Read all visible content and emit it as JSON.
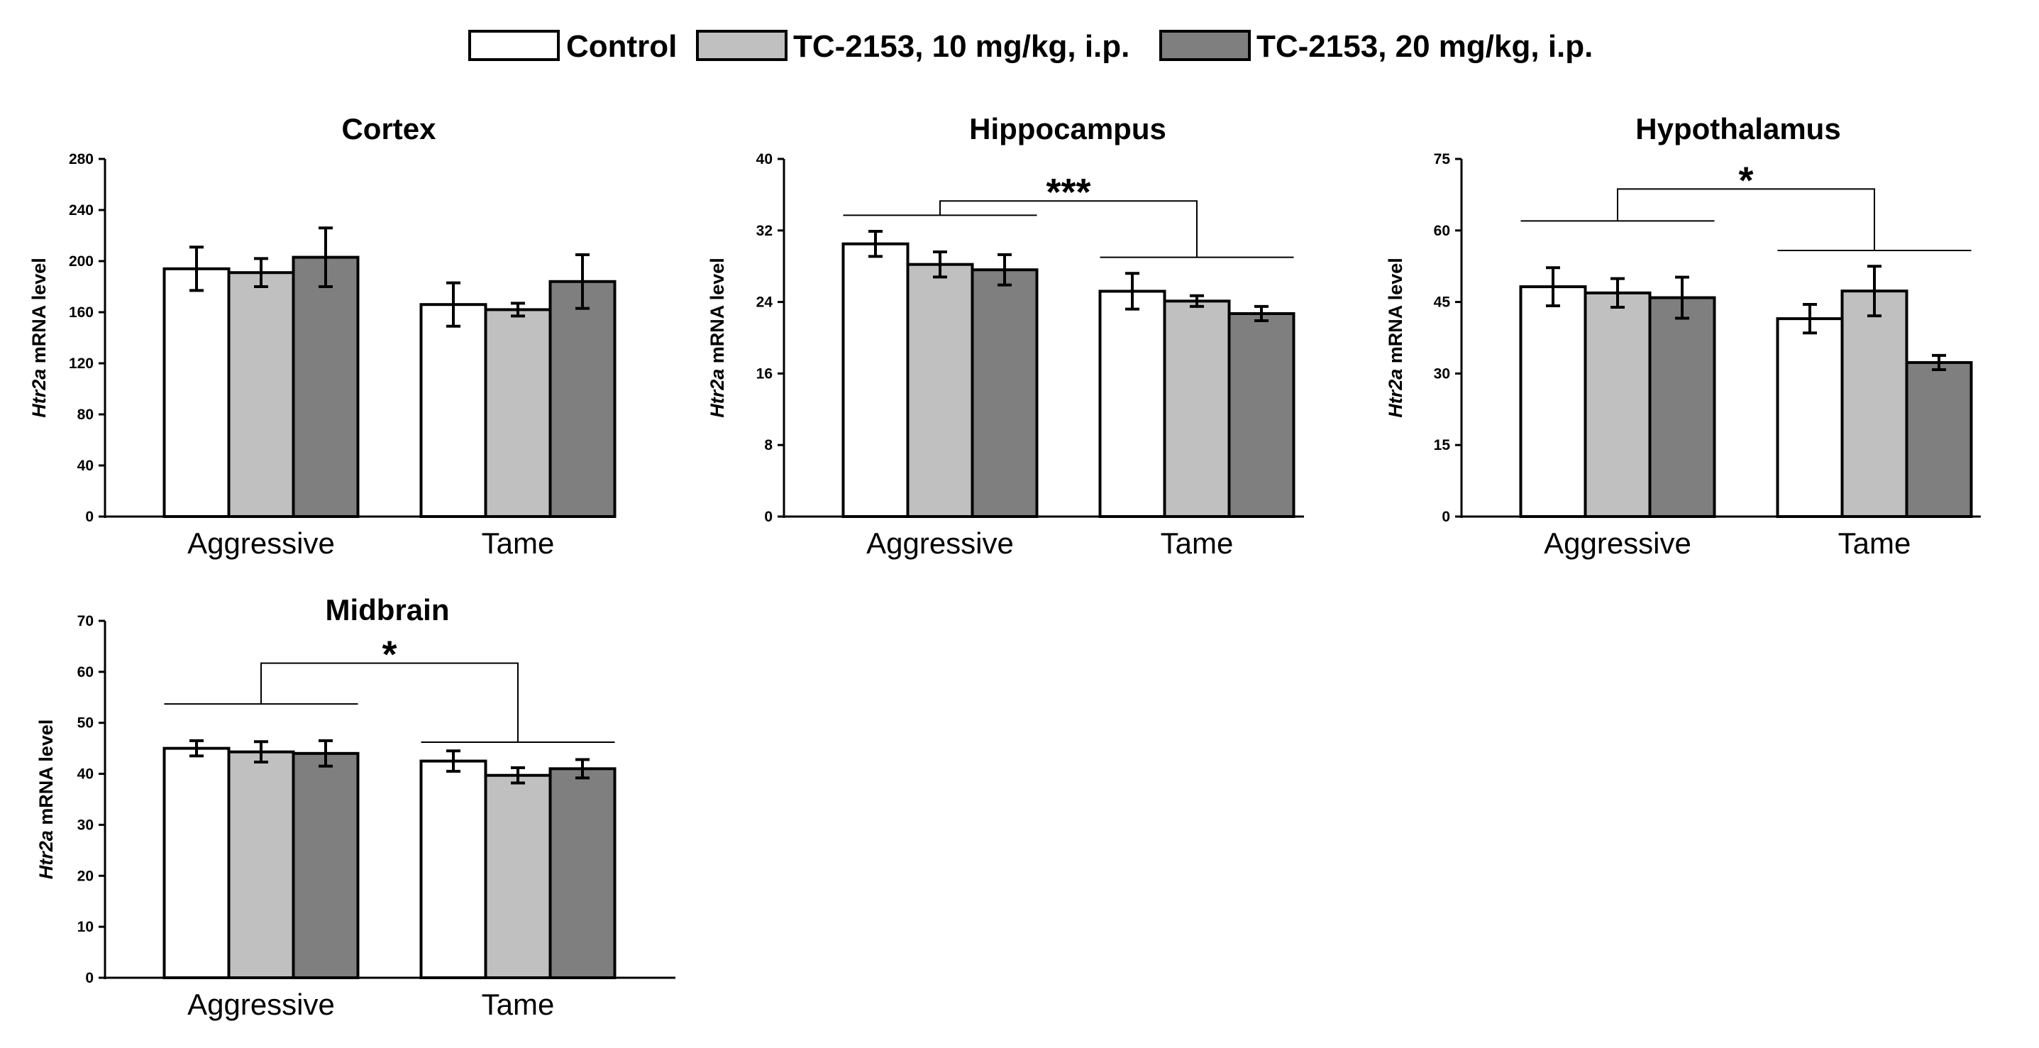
{
  "legend": [
    {
      "label": "Control",
      "color": "#ffffff"
    },
    {
      "label": "TC-2153, 10 mg/kg, i.p.",
      "color": "#c0c0c0"
    },
    {
      "label": "TC-2153, 20 mg/kg, i.p.",
      "color": "#7f7f7f"
    }
  ],
  "chart_data": [
    {
      "type": "bar",
      "title": "Cortex",
      "ylabel_italic": "Htr2a",
      "ylabel_rest": " mRNA level",
      "categories": [
        "Aggressive",
        "Tame"
      ],
      "ylim": [
        0,
        280
      ],
      "yticks": [
        0,
        40,
        80,
        120,
        160,
        200,
        240,
        280
      ],
      "series": [
        {
          "name": "Control",
          "values": [
            194,
            166
          ],
          "errors": [
            17,
            17
          ]
        },
        {
          "name": "TC-2153, 10 mg/kg, i.p.",
          "values": [
            191,
            162
          ],
          "errors": [
            11,
            5
          ]
        },
        {
          "name": "TC-2153, 20 mg/kg, i.p.",
          "values": [
            203,
            184
          ],
          "errors": [
            23,
            21
          ]
        }
      ],
      "significance": null
    },
    {
      "type": "bar",
      "title": "Hippocampus",
      "ylabel_italic": "Htr2a",
      "ylabel_rest": " mRNA level",
      "categories": [
        "Aggressive",
        "Tame"
      ],
      "ylim": [
        0,
        40
      ],
      "yticks": [
        0,
        8,
        16,
        24,
        32,
        40
      ],
      "series": [
        {
          "name": "Control",
          "values": [
            30.5,
            25.2
          ],
          "errors": [
            1.4,
            2.0
          ]
        },
        {
          "name": "TC-2153, 10 mg/kg, i.p.",
          "values": [
            28.2,
            24.1
          ],
          "errors": [
            1.4,
            0.6
          ]
        },
        {
          "name": "TC-2153, 20 mg/kg, i.p.",
          "values": [
            27.6,
            22.7
          ],
          "errors": [
            1.7,
            0.8
          ]
        }
      ],
      "significance": {
        "label": "***",
        "left_level": 33.7,
        "right_level": 29.0,
        "top_level": 35.3
      }
    },
    {
      "type": "bar",
      "title": "Hypothalamus",
      "ylabel_italic": "Htr2a",
      "ylabel_rest": " mRNA level",
      "categories": [
        "Aggressive",
        "Tame"
      ],
      "ylim": [
        0,
        75
      ],
      "yticks": [
        0,
        15,
        30,
        45,
        60,
        75
      ],
      "series": [
        {
          "name": "Control",
          "values": [
            48.2,
            41.5
          ],
          "errors": [
            4.0,
            3.0
          ]
        },
        {
          "name": "TC-2153, 10 mg/kg, i.p.",
          "values": [
            46.9,
            47.3
          ],
          "errors": [
            3.0,
            5.2
          ]
        },
        {
          "name": "TC-2153, 20 mg/kg, i.p.",
          "values": [
            45.9,
            32.3
          ],
          "errors": [
            4.3,
            1.5
          ]
        }
      ],
      "significance": {
        "label": "*",
        "left_level": 62.0,
        "right_level": 55.8,
        "top_level": 68.7
      }
    },
    {
      "type": "bar",
      "title": "Midbrain",
      "ylabel_italic": "Htr2a",
      "ylabel_rest": " mRNA level",
      "categories": [
        "Aggressive",
        "Tame"
      ],
      "ylim": [
        0,
        70
      ],
      "yticks": [
        0,
        10,
        20,
        30,
        40,
        50,
        60,
        70
      ],
      "series": [
        {
          "name": "Control",
          "values": [
            45.0,
            42.5
          ],
          "errors": [
            1.5,
            2.0
          ]
        },
        {
          "name": "TC-2153, 10 mg/kg, i.p.",
          "values": [
            44.3,
            39.7
          ],
          "errors": [
            2.0,
            1.5
          ]
        },
        {
          "name": "TC-2153, 20 mg/kg, i.p.",
          "values": [
            44.0,
            41.0
          ],
          "errors": [
            2.5,
            1.8
          ]
        }
      ],
      "significance": {
        "label": "*",
        "left_level": 53.7,
        "right_level": 46.2,
        "top_level": 61.7
      }
    }
  ]
}
